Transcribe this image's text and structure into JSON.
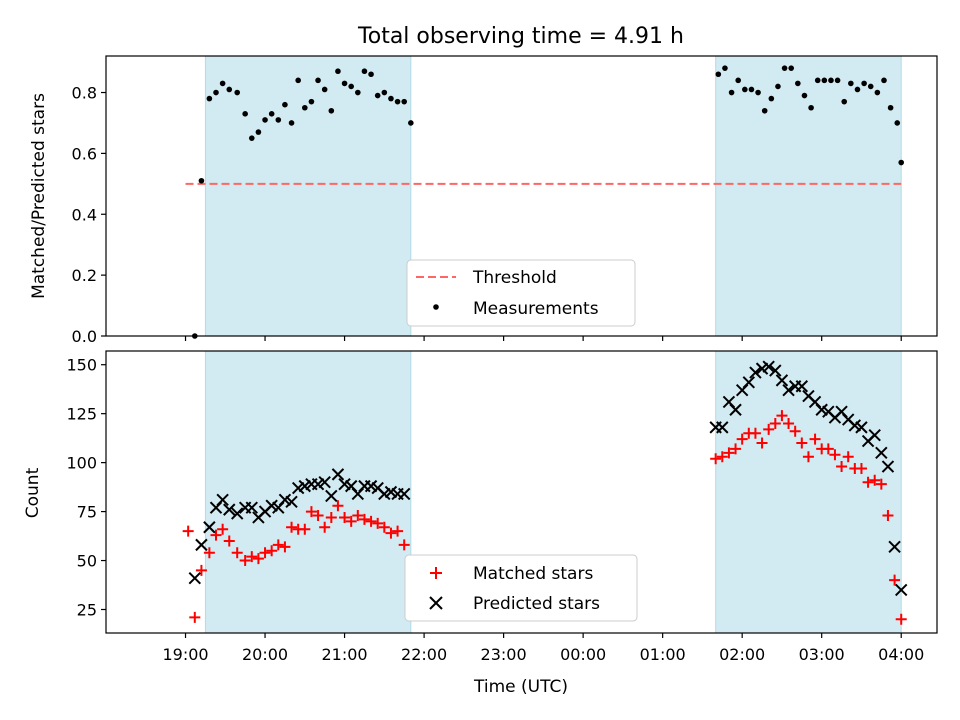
{
  "title": "Total observing time = 4.91 h",
  "xlabel": "Time (UTC)",
  "xticks": [
    "19:00",
    "20:00",
    "21:00",
    "22:00",
    "23:00",
    "00:00",
    "01:00",
    "02:00",
    "03:00",
    "04:00"
  ],
  "colors": {
    "shade": "#add8e6",
    "threshold": "#ff6666",
    "measurements": "#000000",
    "matched": "#ff0000",
    "predicted": "#000000"
  },
  "chart_data": [
    {
      "type": "scatter",
      "ylabel": "Matched/Predicted stars",
      "ylim": [
        0,
        0.92
      ],
      "yticks": [
        "0.0",
        "0.2",
        "0.4",
        "0.6",
        "0.8"
      ],
      "xrange_hours": [
        18.0,
        28.45
      ],
      "shaded_intervals": [
        [
          "19:15",
          "21:50"
        ],
        [
          "01:40",
          "04:00"
        ]
      ],
      "threshold": {
        "label": "Threshold",
        "value": 0.5,
        "x_from": "19:00",
        "x_to": "04:00"
      },
      "legend_position": "lower center",
      "series": [
        {
          "name": "Measurements",
          "marker": "dot",
          "points": [
            [
              "19:07",
              0.0
            ],
            [
              "19:12",
              0.51
            ],
            [
              "19:18",
              0.78
            ],
            [
              "19:23",
              0.8
            ],
            [
              "19:28",
              0.83
            ],
            [
              "19:33",
              0.81
            ],
            [
              "19:39",
              0.8
            ],
            [
              "19:45",
              0.73
            ],
            [
              "19:50",
              0.65
            ],
            [
              "19:55",
              0.67
            ],
            [
              "20:00",
              0.71
            ],
            [
              "20:05",
              0.73
            ],
            [
              "20:10",
              0.71
            ],
            [
              "20:15",
              0.76
            ],
            [
              "20:20",
              0.7
            ],
            [
              "20:25",
              0.84
            ],
            [
              "20:30",
              0.75
            ],
            [
              "20:35",
              0.77
            ],
            [
              "20:40",
              0.84
            ],
            [
              "20:45",
              0.81
            ],
            [
              "20:50",
              0.74
            ],
            [
              "20:55",
              0.87
            ],
            [
              "21:00",
              0.83
            ],
            [
              "21:05",
              0.82
            ],
            [
              "21:10",
              0.8
            ],
            [
              "21:15",
              0.87
            ],
            [
              "21:20",
              0.86
            ],
            [
              "21:25",
              0.79
            ],
            [
              "21:30",
              0.8
            ],
            [
              "21:35",
              0.78
            ],
            [
              "21:40",
              0.77
            ],
            [
              "21:45",
              0.77
            ],
            [
              "21:50",
              0.7
            ],
            [
              "01:42",
              0.86
            ],
            [
              "01:47",
              0.88
            ],
            [
              "01:52",
              0.8
            ],
            [
              "01:57",
              0.84
            ],
            [
              "02:02",
              0.81
            ],
            [
              "02:07",
              0.81
            ],
            [
              "02:12",
              0.8
            ],
            [
              "02:17",
              0.74
            ],
            [
              "02:22",
              0.78
            ],
            [
              "02:27",
              0.82
            ],
            [
              "02:32",
              0.88
            ],
            [
              "02:37",
              0.88
            ],
            [
              "02:42",
              0.83
            ],
            [
              "02:47",
              0.79
            ],
            [
              "02:52",
              0.75
            ],
            [
              "02:57",
              0.84
            ],
            [
              "03:02",
              0.84
            ],
            [
              "03:07",
              0.84
            ],
            [
              "03:12",
              0.84
            ],
            [
              "03:17",
              0.77
            ],
            [
              "03:22",
              0.83
            ],
            [
              "03:27",
              0.81
            ],
            [
              "03:32",
              0.83
            ],
            [
              "03:37",
              0.82
            ],
            [
              "03:42",
              0.8
            ],
            [
              "03:47",
              0.84
            ],
            [
              "03:52",
              0.75
            ],
            [
              "03:57",
              0.7
            ],
            [
              "04:00",
              0.57
            ]
          ]
        }
      ]
    },
    {
      "type": "scatter",
      "ylabel": "Count",
      "ylim": [
        13,
        157
      ],
      "yticks": [
        "25",
        "50",
        "75",
        "100",
        "125",
        "150"
      ],
      "xrange_hours": [
        18.0,
        28.45
      ],
      "shaded_intervals": [
        [
          "19:15",
          "21:50"
        ],
        [
          "01:40",
          "04:00"
        ]
      ],
      "legend_position": "lower center",
      "series": [
        {
          "name": "Matched stars",
          "marker": "plus",
          "points": [
            [
              "19:02",
              65
            ],
            [
              "19:07",
              21
            ],
            [
              "19:12",
              45
            ],
            [
              "19:18",
              54
            ],
            [
              "19:23",
              63
            ],
            [
              "19:28",
              66
            ],
            [
              "19:33",
              60
            ],
            [
              "19:39",
              54
            ],
            [
              "19:45",
              50
            ],
            [
              "19:50",
              52
            ],
            [
              "19:55",
              51
            ],
            [
              "20:00",
              54
            ],
            [
              "20:05",
              55
            ],
            [
              "20:10",
              58
            ],
            [
              "20:15",
              57
            ],
            [
              "20:20",
              67
            ],
            [
              "20:25",
              66
            ],
            [
              "20:30",
              66
            ],
            [
              "20:35",
              75
            ],
            [
              "20:40",
              73
            ],
            [
              "20:45",
              67
            ],
            [
              "20:50",
              72
            ],
            [
              "20:55",
              78
            ],
            [
              "21:00",
              72
            ],
            [
              "21:05",
              70
            ],
            [
              "21:10",
              73
            ],
            [
              "21:15",
              71
            ],
            [
              "21:20",
              70
            ],
            [
              "21:25",
              69
            ],
            [
              "21:30",
              67
            ],
            [
              "21:35",
              64
            ],
            [
              "21:40",
              65
            ],
            [
              "21:45",
              58
            ],
            [
              "01:40",
              102
            ],
            [
              "01:45",
              103
            ],
            [
              "01:50",
              105
            ],
            [
              "01:55",
              107
            ],
            [
              "02:00",
              112
            ],
            [
              "02:05",
              115
            ],
            [
              "02:10",
              115
            ],
            [
              "02:15",
              110
            ],
            [
              "02:20",
              117
            ],
            [
              "02:25",
              120
            ],
            [
              "02:30",
              124
            ],
            [
              "02:35",
              120
            ],
            [
              "02:40",
              116
            ],
            [
              "02:45",
              110
            ],
            [
              "02:50",
              103
            ],
            [
              "02:55",
              112
            ],
            [
              "03:00",
              107
            ],
            [
              "03:05",
              107
            ],
            [
              "03:10",
              104
            ],
            [
              "03:15",
              98
            ],
            [
              "03:20",
              103
            ],
            [
              "03:25",
              97
            ],
            [
              "03:30",
              97
            ],
            [
              "03:35",
              90
            ],
            [
              "03:40",
              91
            ],
            [
              "03:45",
              89
            ],
            [
              "03:50",
              73
            ],
            [
              "03:55",
              40
            ],
            [
              "04:00",
              20
            ]
          ]
        },
        {
          "name": "Predicted stars",
          "marker": "x",
          "points": [
            [
              "19:07",
              41
            ],
            [
              "19:12",
              58
            ],
            [
              "19:18",
              67
            ],
            [
              "19:23",
              77
            ],
            [
              "19:28",
              81
            ],
            [
              "19:33",
              76
            ],
            [
              "19:39",
              74
            ],
            [
              "19:45",
              77
            ],
            [
              "19:50",
              77
            ],
            [
              "19:55",
              72
            ],
            [
              "20:00",
              75
            ],
            [
              "20:05",
              78
            ],
            [
              "20:10",
              77
            ],
            [
              "20:15",
              81
            ],
            [
              "20:20",
              80
            ],
            [
              "20:25",
              87
            ],
            [
              "20:30",
              88
            ],
            [
              "20:35",
              89
            ],
            [
              "20:40",
              89
            ],
            [
              "20:45",
              90
            ],
            [
              "20:50",
              83
            ],
            [
              "20:55",
              94
            ],
            [
              "21:00",
              89
            ],
            [
              "21:05",
              88
            ],
            [
              "21:10",
              84
            ],
            [
              "21:15",
              88
            ],
            [
              "21:20",
              88
            ],
            [
              "21:25",
              87
            ],
            [
              "21:30",
              84
            ],
            [
              "21:35",
              85
            ],
            [
              "21:40",
              84
            ],
            [
              "21:45",
              84
            ],
            [
              "01:40",
              118
            ],
            [
              "01:45",
              118
            ],
            [
              "01:50",
              131
            ],
            [
              "01:55",
              127
            ],
            [
              "02:00",
              137
            ],
            [
              "02:05",
              141
            ],
            [
              "02:10",
              146
            ],
            [
              "02:15",
              148
            ],
            [
              "02:20",
              149
            ],
            [
              "02:25",
              147
            ],
            [
              "02:30",
              142
            ],
            [
              "02:35",
              137
            ],
            [
              "02:40",
              139
            ],
            [
              "02:45",
              139
            ],
            [
              "02:50",
              134
            ],
            [
              "02:55",
              131
            ],
            [
              "03:00",
              127
            ],
            [
              "03:05",
              126
            ],
            [
              "03:10",
              123
            ],
            [
              "03:15",
              126
            ],
            [
              "03:20",
              122
            ],
            [
              "03:25",
              119
            ],
            [
              "03:30",
              118
            ],
            [
              "03:35",
              111
            ],
            [
              "03:40",
              114
            ],
            [
              "03:45",
              105
            ],
            [
              "03:50",
              98
            ],
            [
              "03:55",
              57
            ],
            [
              "04:00",
              35
            ]
          ]
        }
      ]
    }
  ]
}
